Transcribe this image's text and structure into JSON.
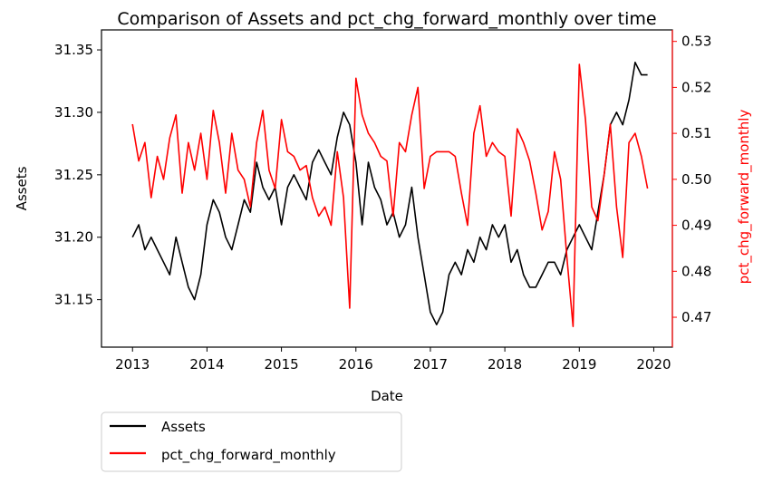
{
  "chart_data": {
    "type": "line",
    "title": "Comparison of Assets and pct_chg_forward_monthly over time",
    "xlabel": "Date",
    "ylabel_left": "Assets",
    "ylabel_right": "pct_chg_forward_monthly",
    "x_ticks": [
      "2013",
      "2014",
      "2015",
      "2016",
      "2017",
      "2018",
      "2019",
      "2020"
    ],
    "y_left_ticks": [
      "31.15",
      "31.20",
      "31.25",
      "31.30",
      "31.35"
    ],
    "y_right_ticks": [
      "0.47",
      "0.48",
      "0.49",
      "0.50",
      "0.51",
      "0.52",
      "0.53"
    ],
    "xlim": [
      "2012-08-01",
      "2020-04-01"
    ],
    "ylim_left": [
      31.112,
      31.366
    ],
    "ylim_right": [
      0.4635,
      0.5325
    ],
    "grid": false,
    "legend_position": "below-left",
    "colors": {
      "assets": "#000000",
      "pct": "#ff0000"
    },
    "series": [
      {
        "name": "Assets",
        "axis": "left",
        "x": [
          "2013-01",
          "2013-02",
          "2013-03",
          "2013-04",
          "2013-05",
          "2013-06",
          "2013-07",
          "2013-08",
          "2013-09",
          "2013-10",
          "2013-11",
          "2013-12",
          "2014-01",
          "2014-02",
          "2014-03",
          "2014-04",
          "2014-05",
          "2014-06",
          "2014-07",
          "2014-08",
          "2014-09",
          "2014-10",
          "2014-11",
          "2014-12",
          "2015-01",
          "2015-02",
          "2015-03",
          "2015-04",
          "2015-05",
          "2015-06",
          "2015-07",
          "2015-08",
          "2015-09",
          "2015-10",
          "2015-11",
          "2015-12",
          "2016-01",
          "2016-02",
          "2016-03",
          "2016-04",
          "2016-05",
          "2016-06",
          "2016-07",
          "2016-08",
          "2016-09",
          "2016-10",
          "2016-11",
          "2016-12",
          "2017-01",
          "2017-02",
          "2017-03",
          "2017-04",
          "2017-05",
          "2017-06",
          "2017-07",
          "2017-08",
          "2017-09",
          "2017-10",
          "2017-11",
          "2017-12",
          "2018-01",
          "2018-02",
          "2018-03",
          "2018-04",
          "2018-05",
          "2018-06",
          "2018-07",
          "2018-08",
          "2018-09",
          "2018-10",
          "2018-11",
          "2018-12",
          "2019-01",
          "2019-02",
          "2019-03",
          "2019-04",
          "2019-05",
          "2019-06",
          "2019-07",
          "2019-08",
          "2019-09",
          "2019-10",
          "2019-11",
          "2019-12"
        ],
        "y": [
          31.2,
          31.21,
          31.19,
          31.2,
          31.19,
          31.18,
          31.17,
          31.2,
          31.18,
          31.16,
          31.15,
          31.17,
          31.21,
          31.23,
          31.22,
          31.2,
          31.19,
          31.21,
          31.23,
          31.22,
          31.26,
          31.24,
          31.23,
          31.24,
          31.21,
          31.24,
          31.25,
          31.24,
          31.23,
          31.26,
          31.27,
          31.26,
          31.25,
          31.28,
          31.3,
          31.29,
          31.26,
          31.21,
          31.26,
          31.24,
          31.23,
          31.21,
          31.22,
          31.2,
          31.21,
          31.24,
          31.2,
          31.17,
          31.14,
          31.13,
          31.14,
          31.17,
          31.18,
          31.17,
          31.19,
          31.18,
          31.2,
          31.19,
          31.21,
          31.2,
          31.21,
          31.18,
          31.19,
          31.17,
          31.16,
          31.16,
          31.17,
          31.18,
          31.18,
          31.17,
          31.19,
          31.2,
          31.21,
          31.2,
          31.19,
          31.22,
          31.25,
          31.29,
          31.3,
          31.29,
          31.31,
          31.34,
          31.33,
          31.33
        ]
      },
      {
        "name": "pct_chg_forward_monthly",
        "axis": "right",
        "x": [
          "2013-01",
          "2013-02",
          "2013-03",
          "2013-04",
          "2013-05",
          "2013-06",
          "2013-07",
          "2013-08",
          "2013-09",
          "2013-10",
          "2013-11",
          "2013-12",
          "2014-01",
          "2014-02",
          "2014-03",
          "2014-04",
          "2014-05",
          "2014-06",
          "2014-07",
          "2014-08",
          "2014-09",
          "2014-10",
          "2014-11",
          "2014-12",
          "2015-01",
          "2015-02",
          "2015-03",
          "2015-04",
          "2015-05",
          "2015-06",
          "2015-07",
          "2015-08",
          "2015-09",
          "2015-10",
          "2015-11",
          "2015-12",
          "2016-01",
          "2016-02",
          "2016-03",
          "2016-04",
          "2016-05",
          "2016-06",
          "2016-07",
          "2016-08",
          "2016-09",
          "2016-10",
          "2016-11",
          "2016-12",
          "2017-01",
          "2017-02",
          "2017-03",
          "2017-04",
          "2017-05",
          "2017-06",
          "2017-07",
          "2017-08",
          "2017-09",
          "2017-10",
          "2017-11",
          "2017-12",
          "2018-01",
          "2018-02",
          "2018-03",
          "2018-04",
          "2018-05",
          "2018-06",
          "2018-07",
          "2018-08",
          "2018-09",
          "2018-10",
          "2018-11",
          "2018-12",
          "2019-01",
          "2019-02",
          "2019-03",
          "2019-04",
          "2019-05",
          "2019-06",
          "2019-07",
          "2019-08",
          "2019-09",
          "2019-10",
          "2019-11",
          "2019-12"
        ],
        "y": [
          0.512,
          0.504,
          0.508,
          0.496,
          0.505,
          0.5,
          0.509,
          0.514,
          0.497,
          0.508,
          0.502,
          0.51,
          0.5,
          0.515,
          0.508,
          0.497,
          0.51,
          0.502,
          0.5,
          0.494,
          0.508,
          0.515,
          0.502,
          0.498,
          0.513,
          0.506,
          0.505,
          0.502,
          0.503,
          0.496,
          0.492,
          0.494,
          0.49,
          0.506,
          0.496,
          0.472,
          0.522,
          0.514,
          0.51,
          0.508,
          0.505,
          0.504,
          0.492,
          0.508,
          0.506,
          0.514,
          0.52,
          0.498,
          0.505,
          0.506,
          0.506,
          0.506,
          0.505,
          0.497,
          0.49,
          0.51,
          0.516,
          0.505,
          0.508,
          0.506,
          0.505,
          0.492,
          0.511,
          0.508,
          0.504,
          0.497,
          0.489,
          0.493,
          0.506,
          0.5,
          0.483,
          0.468,
          0.525,
          0.513,
          0.494,
          0.491,
          0.501,
          0.512,
          0.494,
          0.483,
          0.508,
          0.51,
          0.505,
          0.498
        ]
      }
    ]
  }
}
